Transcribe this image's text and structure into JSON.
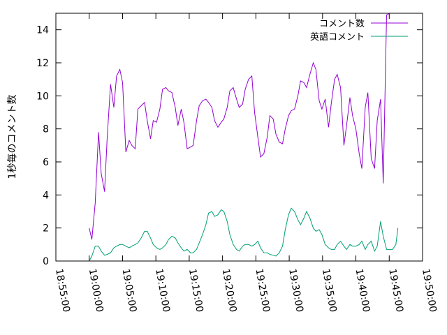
{
  "chart_data": {
    "type": "line",
    "ylabel": "1秒毎のコメント数",
    "ylim": [
      0,
      15
    ],
    "yticks": [
      0,
      2,
      4,
      6,
      8,
      10,
      12,
      14
    ],
    "xlim_minutes": [
      -5,
      50
    ],
    "xticks": [
      "18:55:00",
      "19:00:00",
      "19:05:00",
      "19:10:00",
      "19:15:00",
      "19:20:00",
      "19:25:00",
      "19:30:00",
      "19:35:00",
      "19:40:00",
      "19:45:00",
      "19:50:00"
    ],
    "legend_position": "top-right",
    "series": [
      {
        "name": "コメント数",
        "color": "#9400d3",
        "x": [
          0,
          0.4,
          0.9,
          1.4,
          1.8,
          2.3,
          2.7,
          3.2,
          3.7,
          4.1,
          4.6,
          5.0,
          5.5,
          6.0,
          6.4,
          6.9,
          7.3,
          7.8,
          8.3,
          8.7,
          9.2,
          9.6,
          10.1,
          10.6,
          11.0,
          11.5,
          11.9,
          12.4,
          12.9,
          13.3,
          13.8,
          14.2,
          14.7,
          15.2,
          15.6,
          16.1,
          16.5,
          17.0,
          17.5,
          17.9,
          18.4,
          18.8,
          19.3,
          19.8,
          20.2,
          20.7,
          21.1,
          21.6,
          22.1,
          22.5,
          23.0,
          23.4,
          23.9,
          24.4,
          24.8,
          25.3,
          25.7,
          26.2,
          26.7,
          27.1,
          27.6,
          28.0,
          28.5,
          29.0,
          29.4,
          29.9,
          30.3,
          30.8,
          31.3,
          31.7,
          32.2,
          32.6,
          33.1,
          33.6,
          34.0,
          34.5,
          34.9,
          35.4,
          35.9,
          36.3,
          36.8,
          37.2,
          37.7,
          38.2,
          38.6,
          39.1,
          39.5,
          40.0,
          40.5,
          40.9,
          41.4,
          41.8,
          42.3,
          42.8,
          43.2,
          43.7,
          44.1,
          44.6,
          45.1,
          45.5,
          46.0,
          46.3
        ],
        "values": [
          2.0,
          1.3,
          3.5,
          7.8,
          5.3,
          4.2,
          7.5,
          10.7,
          9.3,
          11.2,
          11.6,
          10.8,
          6.6,
          7.3,
          7.0,
          6.8,
          9.2,
          9.4,
          9.6,
          8.5,
          7.4,
          8.5,
          8.4,
          9.2,
          10.4,
          10.5,
          10.3,
          10.2,
          9.3,
          8.2,
          9.2,
          8.4,
          6.8,
          6.9,
          7.0,
          8.5,
          9.4,
          9.7,
          9.8,
          9.6,
          9.3,
          8.5,
          8.1,
          8.4,
          8.6,
          9.3,
          10.3,
          10.5,
          9.8,
          9.3,
          9.5,
          10.4,
          11.0,
          11.2,
          9.0,
          7.5,
          6.3,
          6.5,
          7.5,
          8.8,
          8.6,
          7.7,
          7.2,
          7.1,
          8.0,
          8.8,
          9.1,
          9.2,
          10.0,
          10.9,
          10.8,
          10.5,
          11.3,
          12.0,
          11.6,
          9.7,
          9.2,
          9.8,
          8.1,
          9.5,
          11.0,
          11.3,
          10.5,
          7.0,
          8.2,
          9.9,
          8.8,
          8.0,
          6.5,
          5.6,
          9.3,
          10.2,
          6.2,
          5.6,
          8.5,
          9.8,
          4.7,
          14.9,
          15.0,
          15.0,
          15.0,
          15.0
        ]
      },
      {
        "name": "英語コメント",
        "color": "#009e73",
        "x": [
          0,
          0.4,
          0.9,
          1.4,
          1.8,
          2.3,
          2.7,
          3.2,
          3.7,
          4.1,
          4.6,
          5.0,
          5.5,
          6.0,
          6.4,
          6.9,
          7.3,
          7.8,
          8.3,
          8.7,
          9.2,
          9.6,
          10.1,
          10.6,
          11.0,
          11.5,
          11.9,
          12.4,
          12.9,
          13.3,
          13.8,
          14.2,
          14.7,
          15.2,
          15.6,
          16.1,
          16.5,
          17.0,
          17.5,
          17.9,
          18.4,
          18.8,
          19.3,
          19.8,
          20.2,
          20.7,
          21.1,
          21.6,
          22.1,
          22.5,
          23.0,
          23.4,
          23.9,
          24.4,
          24.8,
          25.3,
          25.7,
          26.2,
          26.7,
          27.1,
          27.6,
          28.0,
          28.5,
          29.0,
          29.4,
          29.9,
          30.3,
          30.8,
          31.3,
          31.7,
          32.2,
          32.6,
          33.1,
          33.6,
          34.0,
          34.5,
          34.9,
          35.4,
          35.9,
          36.3,
          36.8,
          37.2,
          37.7,
          38.2,
          38.6,
          39.1,
          39.5,
          40.0,
          40.5,
          40.9,
          41.4,
          41.8,
          42.3,
          42.8,
          43.2,
          43.7,
          44.1,
          44.6,
          45.1,
          45.5,
          46.0,
          46.3
        ],
        "values": [
          0.0,
          0.3,
          0.9,
          0.9,
          0.6,
          0.35,
          0.4,
          0.5,
          0.8,
          0.9,
          1.0,
          1.0,
          0.9,
          0.8,
          0.9,
          1.0,
          1.1,
          1.4,
          1.8,
          1.8,
          1.4,
          1.0,
          0.8,
          0.7,
          0.8,
          1.0,
          1.3,
          1.5,
          1.4,
          1.1,
          0.8,
          0.6,
          0.7,
          0.5,
          0.5,
          0.7,
          1.1,
          1.6,
          2.2,
          2.9,
          3.0,
          2.7,
          2.8,
          3.1,
          3.0,
          2.4,
          1.6,
          1.0,
          0.7,
          0.6,
          0.9,
          1.0,
          1.0,
          0.9,
          1.0,
          1.2,
          0.8,
          0.5,
          0.5,
          0.4,
          0.35,
          0.3,
          0.5,
          0.9,
          1.9,
          2.8,
          3.2,
          3.0,
          2.5,
          2.2,
          2.6,
          3.0,
          2.6,
          2.0,
          1.8,
          1.9,
          1.6,
          1.0,
          0.8,
          0.7,
          0.7,
          1.0,
          1.2,
          0.9,
          0.7,
          1.0,
          0.9,
          0.9,
          1.0,
          1.2,
          0.7,
          1.0,
          1.2,
          0.6,
          0.9,
          2.4,
          1.5,
          0.7,
          0.7,
          0.7,
          1.0,
          2.0
        ]
      }
    ]
  }
}
